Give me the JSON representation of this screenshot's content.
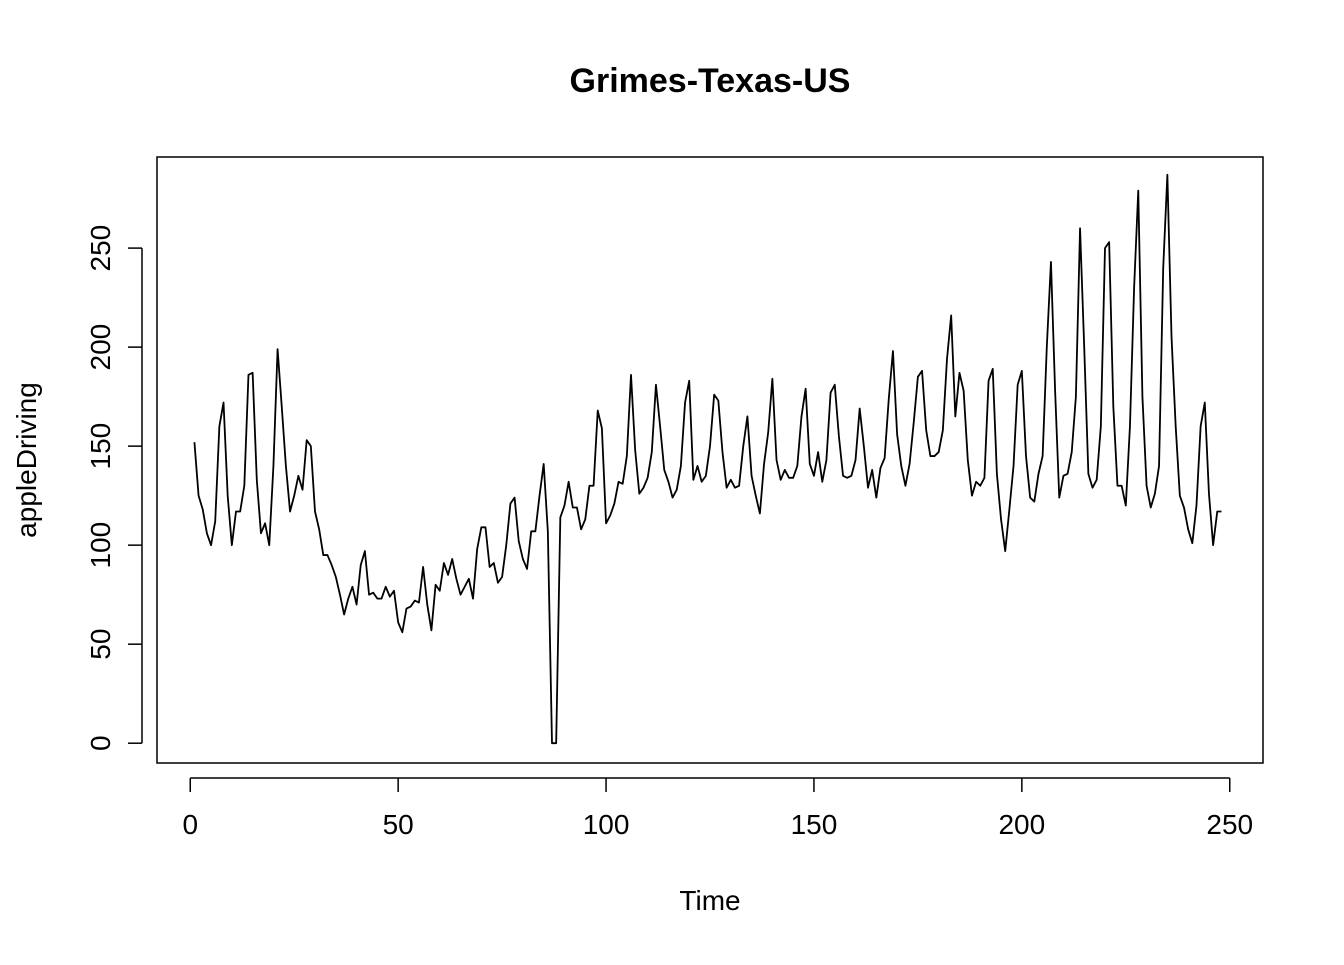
{
  "chart_data": {
    "type": "line",
    "title": "Grimes-Texas-US",
    "xlabel": "Time",
    "ylabel": "appleDriving",
    "xlim": [
      -8,
      258
    ],
    "ylim": [
      -10,
      296
    ],
    "xticks": [
      0,
      50,
      100,
      150,
      200,
      250
    ],
    "yticks": [
      0,
      50,
      100,
      150,
      200,
      250
    ],
    "grid": false,
    "legend": "none",
    "line_color": "#000000",
    "series": [
      {
        "x": [
          1,
          2,
          3,
          4,
          5,
          6,
          7,
          8,
          9,
          10,
          11,
          12,
          13,
          14,
          15,
          16,
          17,
          18,
          19,
          20,
          21,
          22,
          23,
          24,
          25,
          26,
          27,
          28,
          29,
          30,
          31,
          32,
          33,
          34,
          35,
          36,
          37,
          38,
          39,
          40,
          41,
          42,
          43,
          44,
          45,
          46,
          47,
          48,
          49,
          50,
          51,
          52,
          53,
          54,
          55,
          56,
          57,
          58,
          59,
          60,
          61,
          62,
          63,
          64,
          65,
          66,
          67,
          68,
          69,
          70,
          71,
          72,
          73,
          74,
          75,
          76,
          77,
          78,
          79,
          80,
          81,
          82,
          83,
          84,
          85,
          86,
          87,
          88,
          89,
          90,
          91,
          92,
          93,
          94,
          95,
          96,
          97,
          98,
          99,
          100,
          101,
          102,
          103,
          104,
          105,
          106,
          107,
          108,
          109,
          110,
          111,
          112,
          113,
          114,
          115,
          116,
          117,
          118,
          119,
          120,
          121,
          122,
          123,
          124,
          125,
          126,
          127,
          128,
          129,
          130,
          131,
          132,
          133,
          134,
          135,
          136,
          137,
          138,
          139,
          140,
          141,
          142,
          143,
          144,
          145,
          146,
          147,
          148,
          149,
          150,
          151,
          152,
          153,
          154,
          155,
          156,
          157,
          158,
          159,
          160,
          161,
          162,
          163,
          164,
          165,
          166,
          167,
          168,
          169,
          170,
          171,
          172,
          173,
          174,
          175,
          176,
          177,
          178,
          179,
          180,
          181,
          182,
          183,
          184,
          185,
          186,
          187,
          188,
          189,
          190,
          191,
          192,
          193,
          194,
          195,
          196,
          197,
          198,
          199,
          200,
          201,
          202,
          203,
          204,
          205,
          206,
          207,
          208,
          209,
          210,
          211,
          212,
          213,
          214,
          215,
          216,
          217,
          218,
          219,
          220,
          221,
          222,
          223,
          224,
          225,
          226,
          227,
          228,
          229,
          230,
          231,
          232,
          233,
          234,
          235,
          236,
          237,
          238,
          239,
          240,
          241,
          242,
          243,
          244,
          245,
          246,
          247,
          248
        ],
        "values": [
          152,
          125,
          118,
          106,
          100,
          112,
          160,
          172,
          125,
          100,
          117,
          117,
          130,
          186,
          187,
          133,
          106,
          111,
          100,
          140,
          199,
          170,
          140,
          117,
          125,
          135,
          128,
          153,
          150,
          117,
          108,
          95,
          95,
          90,
          84,
          75,
          65,
          73,
          79,
          70,
          90,
          97,
          75,
          76,
          73,
          73,
          79,
          74,
          77,
          61,
          56,
          68,
          69,
          72,
          71,
          89,
          70,
          57,
          80,
          77,
          91,
          85,
          93,
          83,
          75,
          79,
          83,
          73,
          98,
          109,
          109,
          89,
          91,
          81,
          84,
          100,
          121,
          124,
          102,
          93,
          88,
          107,
          107,
          125,
          141,
          107,
          0,
          0,
          114,
          120,
          132,
          119,
          119,
          108,
          113,
          130,
          130,
          168,
          159,
          111,
          115,
          121,
          132,
          131,
          145,
          186,
          148,
          126,
          129,
          134,
          147,
          181,
          160,
          138,
          132,
          124,
          128,
          140,
          172,
          183,
          133,
          140,
          132,
          135,
          150,
          176,
          173,
          147,
          129,
          133,
          129,
          130,
          150,
          165,
          135,
          125,
          116,
          141,
          157,
          184,
          143,
          133,
          138,
          134,
          134,
          140,
          165,
          179,
          141,
          135,
          147,
          132,
          143,
          177,
          181,
          155,
          135,
          134,
          135,
          143,
          169,
          150,
          129,
          138,
          124,
          139,
          144,
          174,
          198,
          156,
          140,
          130,
          141,
          162,
          185,
          188,
          158,
          145,
          145,
          147,
          158,
          194,
          216,
          165,
          187,
          178,
          143,
          125,
          132,
          130,
          134,
          183,
          189,
          136,
          113,
          97,
          118,
          140,
          181,
          188,
          145,
          124,
          122,
          136,
          145,
          200,
          243,
          178,
          124,
          135,
          136,
          147,
          175,
          260,
          200,
          136,
          129,
          133,
          160,
          250,
          253,
          170,
          130,
          130,
          120,
          160,
          230,
          279,
          175,
          130,
          119,
          126,
          140,
          240,
          287,
          205,
          160,
          125,
          119,
          108,
          101,
          120,
          160,
          172,
          126,
          100,
          117,
          117
        ]
      }
    ]
  }
}
